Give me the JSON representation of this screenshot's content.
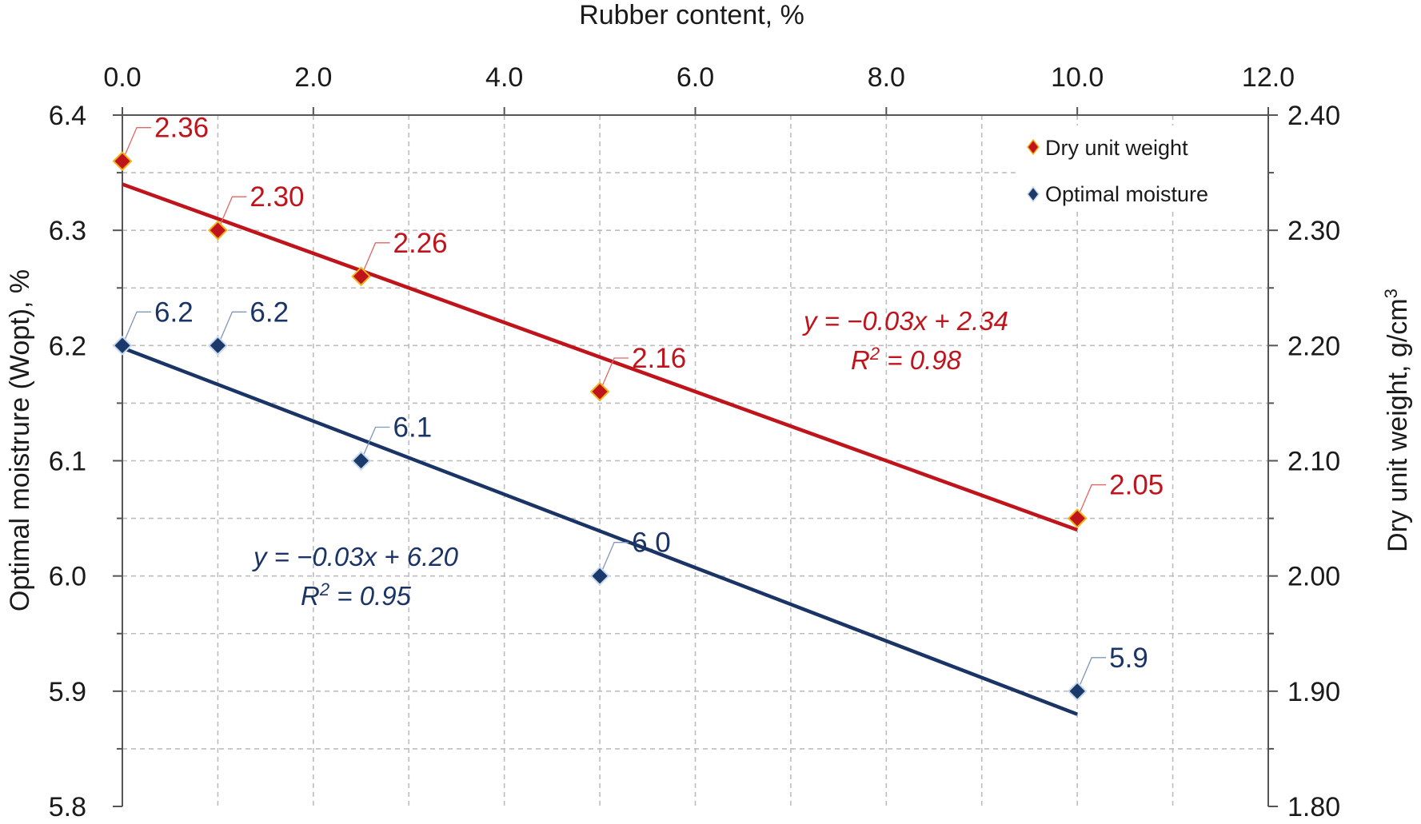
{
  "chart_data": {
    "type": "scatter",
    "x_axis": {
      "label": "Rubber content, %",
      "position": "top",
      "range": [
        0,
        12
      ],
      "ticks": [
        "0.0",
        "2.0",
        "4.0",
        "6.0",
        "8.0",
        "10.0",
        "12.0"
      ],
      "grid": true
    },
    "y_left": {
      "label": "Optimal moistrure (Wopt), %",
      "range": [
        5.8,
        6.4
      ],
      "ticks": [
        "6.4",
        "6.3",
        "6.2",
        "6.1",
        "6.0",
        "5.9",
        "5.8"
      ],
      "grid": true
    },
    "y_right": {
      "label_main": "Dry unit weight, g/cm",
      "label_sup": "3",
      "range": [
        1.8,
        2.4
      ],
      "ticks": [
        "2.40",
        "2.30",
        "2.20",
        "2.10",
        "2.00",
        "1.90",
        "1.80"
      ]
    },
    "legend": {
      "placement": "top-right",
      "entries": [
        "Dry unit weight",
        "Optimal moisture"
      ]
    },
    "series": [
      {
        "name": "Dry unit weight",
        "axis": "right",
        "color": "#c0141c",
        "marker_fill": "#c0141c",
        "marker_edge": "#f2b21a",
        "x": [
          0,
          1,
          2.5,
          5,
          10
        ],
        "y": [
          2.36,
          2.3,
          2.26,
          2.16,
          2.05
        ],
        "labels": [
          "2.36",
          "2.30",
          "2.26",
          "2.16",
          "2.05"
        ],
        "trendline": {
          "x": [
            0,
            10
          ],
          "y": [
            2.34,
            2.04
          ],
          "equation": "y = −0.03x + 2.34",
          "r2_prefix": "R",
          "r2_sup": "2",
          "r2_value": " = 0.98"
        }
      },
      {
        "name": "Optimal moisture",
        "axis": "left",
        "color": "#1b3466",
        "marker_fill": "#1b3a6b",
        "marker_edge": "#c9d9ec",
        "x": [
          0,
          1,
          2.5,
          5,
          10
        ],
        "y": [
          6.2,
          6.2,
          6.1,
          6.0,
          5.9
        ],
        "labels": [
          "6.2",
          "6.2",
          "6.1",
          "6.0",
          "5.9"
        ],
        "trendline": {
          "x": [
            0,
            10
          ],
          "y": [
            6.198,
            5.88
          ],
          "equation": "y = −0.03x + 6.20",
          "r2_prefix": "R",
          "r2_sup": "2",
          "r2_value": " = 0.95"
        }
      }
    ]
  }
}
